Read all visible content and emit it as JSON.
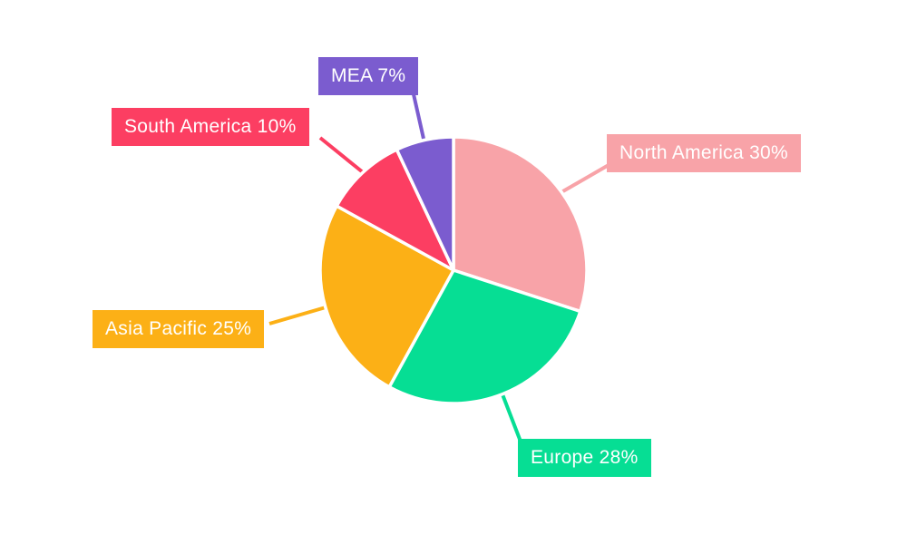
{
  "chart_data": {
    "type": "pie",
    "title": "",
    "legend": "none",
    "units": "%",
    "start_angle": "12-oclock",
    "direction": "clockwise",
    "background": "#FFFFFF",
    "labels_style": "boxed-with-leader-lines",
    "label_text_color": "#FFFFFF",
    "slice_border_color": "#FFFFFF",
    "categories": [
      "North America",
      "Europe",
      "Asia Pacific",
      "South America",
      "MEA"
    ],
    "values": [
      30,
      28,
      25,
      10,
      7
    ],
    "slices": [
      {
        "name": "North America",
        "value": 30,
        "label": "North America 30%",
        "color": "#F8A3A8"
      },
      {
        "name": "Europe",
        "value": 28,
        "label": "Europe 28%",
        "color": "#06DE94"
      },
      {
        "name": "Asia Pacific",
        "value": 25,
        "label": "Asia Pacific 25%",
        "color": "#FCB016"
      },
      {
        "name": "South America",
        "value": 10,
        "label": "South America 10%",
        "color": "#FC3E62"
      },
      {
        "name": "MEA",
        "value": 7,
        "label": "MEA 7%",
        "color": "#7B5CCF"
      }
    ]
  }
}
